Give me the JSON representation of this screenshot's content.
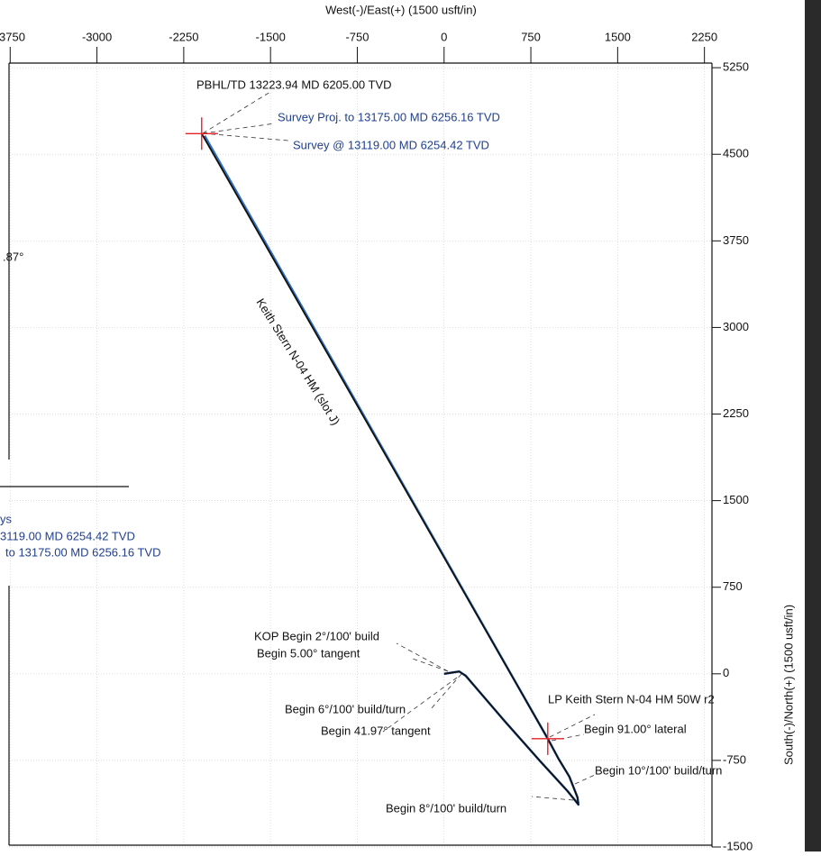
{
  "chart_data": {
    "type": "line",
    "x_label": "West(-)/East(+) (1500 usft/in)",
    "y_label": "South(-)/North(+) (1500 usft/in)",
    "xlim": [
      -3760,
      2315
    ],
    "ylim": [
      -1500,
      5290
    ],
    "xticks": [
      -3750,
      -3000,
      -2250,
      -1500,
      -750,
      0,
      750,
      1500,
      2250
    ],
    "yticks": [
      -1500,
      -750,
      0,
      750,
      1500,
      2250,
      3000,
      3750,
      4500,
      5250
    ],
    "grid": true,
    "series": [
      {
        "color": "#2f6fc0",
        "x": [
          0,
          130,
          187,
          522,
          833,
          1067,
          1130,
          1161,
          1153,
          1083,
          989,
          896,
          -2070
        ],
        "values": [
          0,
          20,
          -17,
          -408,
          -759,
          -1016,
          -1094,
          -1133,
          -1071,
          -891,
          -735,
          -562,
          4660
        ]
      },
      {
        "color": "#111111",
        "x": [
          0,
          130,
          187,
          522,
          833,
          1067,
          1130,
          1161,
          1153,
          1083,
          989,
          896,
          -2095
        ],
        "values": [
          0,
          20,
          -17,
          -408,
          -759,
          -1016,
          -1094,
          -1133,
          -1071,
          -891,
          -735,
          -562,
          4679
        ]
      }
    ],
    "markers": {
      "color": "#e8202a",
      "x": [
        -2095,
        896
      ],
      "values": [
        4679,
        -562
      ]
    },
    "well_label": "Keith Stern N-04 HM (slot J)",
    "annotations": [
      {
        "text": "PBHL/TD 13223.94 MD 6205.00 TVD",
        "color": "#111111"
      },
      {
        "text": "Survey Proj. to 13175.00 MD 6256.16 TVD",
        "color": "#1f3f8f"
      },
      {
        "text": "Survey @ 13119.00 MD 6254.42 TVD",
        "color": "#1f3f8f"
      },
      {
        "text": "KOP Begin 2°/100' build",
        "color": "#111111"
      },
      {
        "text": "Begin 5.00° tangent",
        "color": "#111111"
      },
      {
        "text": "Begin 6°/100' build/turn",
        "color": "#111111"
      },
      {
        "text": "Begin 41.97° tangent",
        "color": "#111111"
      },
      {
        "text": "LP Keith Stern N-04 HM 50W r2",
        "color": "#111111"
      },
      {
        "text": "Begin 91.00° lateral",
        "color": "#111111"
      },
      {
        "text": "Begin 10°/100' build/turn",
        "color": "#111111"
      },
      {
        "text": "Begin 8°/100' build/turn",
        "color": "#111111"
      },
      {
        "text": ".87°",
        "color": "#111111"
      },
      {
        "text": "ys",
        "color": "#1f3f8f"
      },
      {
        "text": "3119.00 MD 6254.42 TVD",
        "color": "#1f3f8f"
      },
      {
        "text": "to 13175.00 MD 6256.16 TVD",
        "color": "#1f3f8f"
      }
    ]
  }
}
